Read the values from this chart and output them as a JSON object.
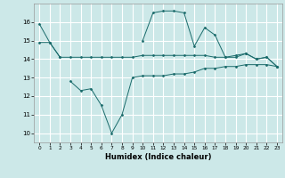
{
  "x": [
    0,
    1,
    2,
    3,
    4,
    5,
    6,
    7,
    8,
    9,
    10,
    11,
    12,
    13,
    14,
    15,
    16,
    17,
    18,
    19,
    20,
    21,
    22,
    23
  ],
  "line1": [
    15.9,
    14.9,
    14.1,
    null,
    null,
    null,
    null,
    null,
    null,
    null,
    15.0,
    16.5,
    16.6,
    16.6,
    16.5,
    14.7,
    15.7,
    15.3,
    14.1,
    14.2,
    14.3,
    14.0,
    14.1,
    13.6
  ],
  "line2": [
    14.9,
    14.9,
    14.1,
    14.1,
    14.1,
    14.1,
    14.1,
    14.1,
    14.1,
    14.1,
    14.2,
    14.2,
    14.2,
    14.2,
    14.2,
    14.2,
    14.2,
    14.1,
    14.1,
    14.1,
    14.3,
    14.0,
    14.1,
    13.6
  ],
  "line3": [
    null,
    null,
    null,
    12.8,
    12.3,
    12.4,
    11.5,
    10.0,
    11.0,
    13.0,
    13.1,
    13.1,
    13.1,
    13.2,
    13.2,
    13.3,
    13.5,
    13.5,
    13.6,
    13.6,
    13.7,
    13.7,
    13.7,
    13.6
  ],
  "line_color": "#1a6b6b",
  "bg_color": "#cce8e8",
  "grid_color": "#ffffff",
  "xlabel": "Humidex (Indice chaleur)",
  "ylim": [
    9.5,
    17.0
  ],
  "xlim": [
    -0.5,
    23.5
  ],
  "yticks": [
    10,
    11,
    12,
    13,
    14,
    15,
    16
  ],
  "xticks": [
    0,
    1,
    2,
    3,
    4,
    5,
    6,
    7,
    8,
    9,
    10,
    11,
    12,
    13,
    14,
    15,
    16,
    17,
    18,
    19,
    20,
    21,
    22,
    23
  ]
}
